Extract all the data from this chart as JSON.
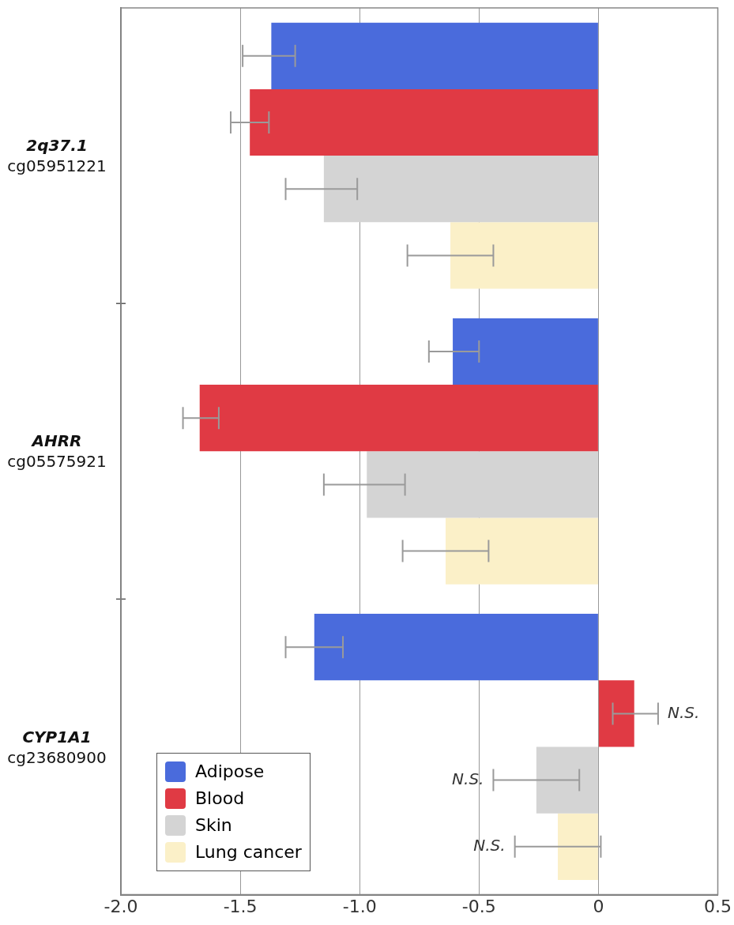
{
  "chart_data": {
    "type": "bar",
    "orientation": "horizontal",
    "categories": [
      "2q37.1\ncg05951221",
      "AHRR\ncg05575921",
      "CYP1A1\ncg23680900"
    ],
    "series": [
      {
        "name": "Adipose",
        "color": "#4a6bdc",
        "values": [
          -1.37,
          -0.61,
          -1.19
        ],
        "errors": [
          [
            -1.49,
            -1.27
          ],
          [
            -0.71,
            -0.5
          ],
          [
            -1.31,
            -1.07
          ]
        ]
      },
      {
        "name": "Blood",
        "color": "#e03a44",
        "values": [
          -1.46,
          -1.67,
          0.15
        ],
        "errors": [
          [
            -1.54,
            -1.38
          ],
          [
            -1.74,
            -1.59
          ],
          [
            0.06,
            0.25
          ]
        ]
      },
      {
        "name": "Skin",
        "color": "#d4d4d4",
        "values": [
          -1.15,
          -0.97,
          -0.26
        ],
        "errors": [
          [
            -1.31,
            -1.01
          ],
          [
            -1.15,
            -0.81
          ],
          [
            -0.44,
            -0.08
          ]
        ]
      },
      {
        "name": "Lung cancer",
        "color": "#fbf0c8",
        "values": [
          -0.62,
          -0.64,
          -0.17
        ],
        "errors": [
          [
            -0.8,
            -0.44
          ],
          [
            -0.82,
            -0.46
          ],
          [
            -0.35,
            0.01
          ]
        ]
      }
    ],
    "xlim": [
      -2,
      0.5
    ],
    "xticks": [
      {
        "value": -2,
        "label": "-2.0"
      },
      -1.5,
      {
        "value": -1,
        "label": "-1.0"
      },
      -0.5,
      0,
      0.5
    ],
    "grid": "x",
    "legend": "bottom left",
    "annotations": [
      "N.S.",
      "N.S.",
      "N.S."
    ]
  }
}
